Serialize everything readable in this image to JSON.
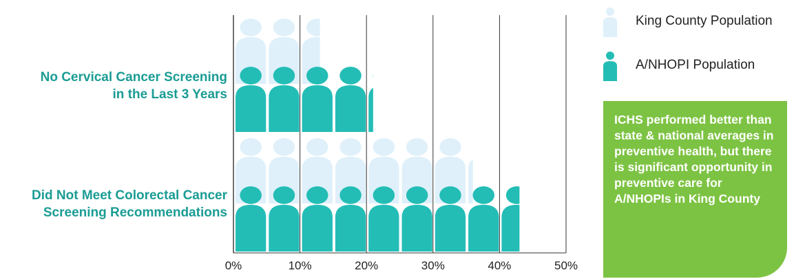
{
  "chart_data": {
    "type": "bar",
    "categories": [
      "No Cervical Cancer Screening in the Last 3 Years",
      "Did Not Meet Colorectal Cancer Screening Recommendations"
    ],
    "category_lines": [
      [
        "No Cervical Cancer Screening",
        "in the Last 3 Years"
      ],
      [
        "Did Not Meet Colorectal Cancer",
        "Screening Recommendations"
      ]
    ],
    "series": [
      {
        "name": "King County Population",
        "values": [
          13,
          36
        ],
        "color": "#dff0fa"
      },
      {
        "name": "A/NHOPI Population",
        "values": [
          21,
          43
        ],
        "color": "#23bdb6"
      }
    ],
    "xlim": [
      0,
      50
    ],
    "xticks": [
      "0%",
      "10%",
      "20%",
      "30%",
      "40%",
      "50%"
    ],
    "grid": true,
    "legend_position": "top-right",
    "orientation": "horizontal",
    "icon": "person-icon"
  },
  "callout": {
    "text": "ICHS performed better than state & national averages in preventive health, but there is significant opportunity in preventive care for A/NHOPIs in King County",
    "color": "#7dc343"
  }
}
